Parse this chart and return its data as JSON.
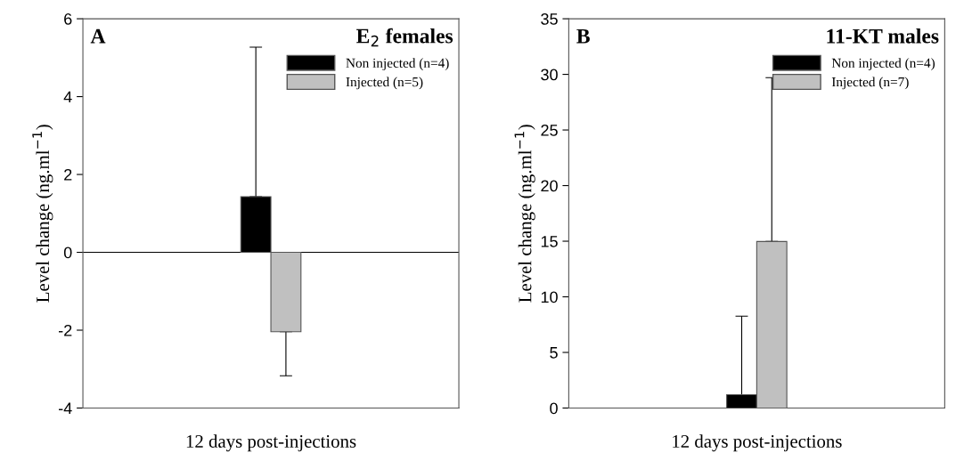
{
  "chart_data": [
    {
      "type": "bar",
      "title": "E$_{2}$ females",
      "annotations": [
        "A"
      ],
      "xlabel": "12 days post-injections",
      "ylabel": "Level change (ng.ml$^{−1}$)",
      "categories": [
        null
      ],
      "series": [
        {
          "name": "Non injected (n=4)",
          "color": "#000000",
          "values": [
            1.43
          ],
          "errors": [
            [
              1.43,
              5.27
            ]
          ]
        },
        {
          "name": "Injected (n=5)",
          "color": "#c0c0c0",
          "values": [
            -2.04
          ],
          "errors": [
            [
              -3.17,
              -2.04
            ]
          ]
        }
      ],
      "ylim": [
        -4,
        6
      ],
      "yticks": [
        -4,
        -2,
        0,
        2,
        4,
        6
      ],
      "ref_lines": [
        {
          "axis": "y",
          "value": 0,
          "color": "#000000"
        }
      ],
      "legend": "top right",
      "grid": false
    },
    {
      "type": "bar",
      "title": "11-KT males",
      "annotations": [
        "B"
      ],
      "xlabel": "12 days post-injections",
      "ylabel": "Level change (ng.ml$^{−1}$)",
      "categories": [
        null
      ],
      "series": [
        {
          "name": "Non injected (n=4)",
          "color": "#000000",
          "values": [
            1.2
          ],
          "errors": [
            [
              1.2,
              8.26
            ]
          ]
        },
        {
          "name": "Injected (n=7)",
          "color": "#c0c0c0",
          "values": [
            14.97
          ],
          "errors": [
            [
              14.97,
              29.7
            ]
          ]
        }
      ],
      "ylim": [
        0,
        35
      ],
      "yticks": [
        0,
        5,
        10,
        15,
        20,
        25,
        30,
        35
      ],
      "legend": "top right",
      "grid": false
    }
  ]
}
